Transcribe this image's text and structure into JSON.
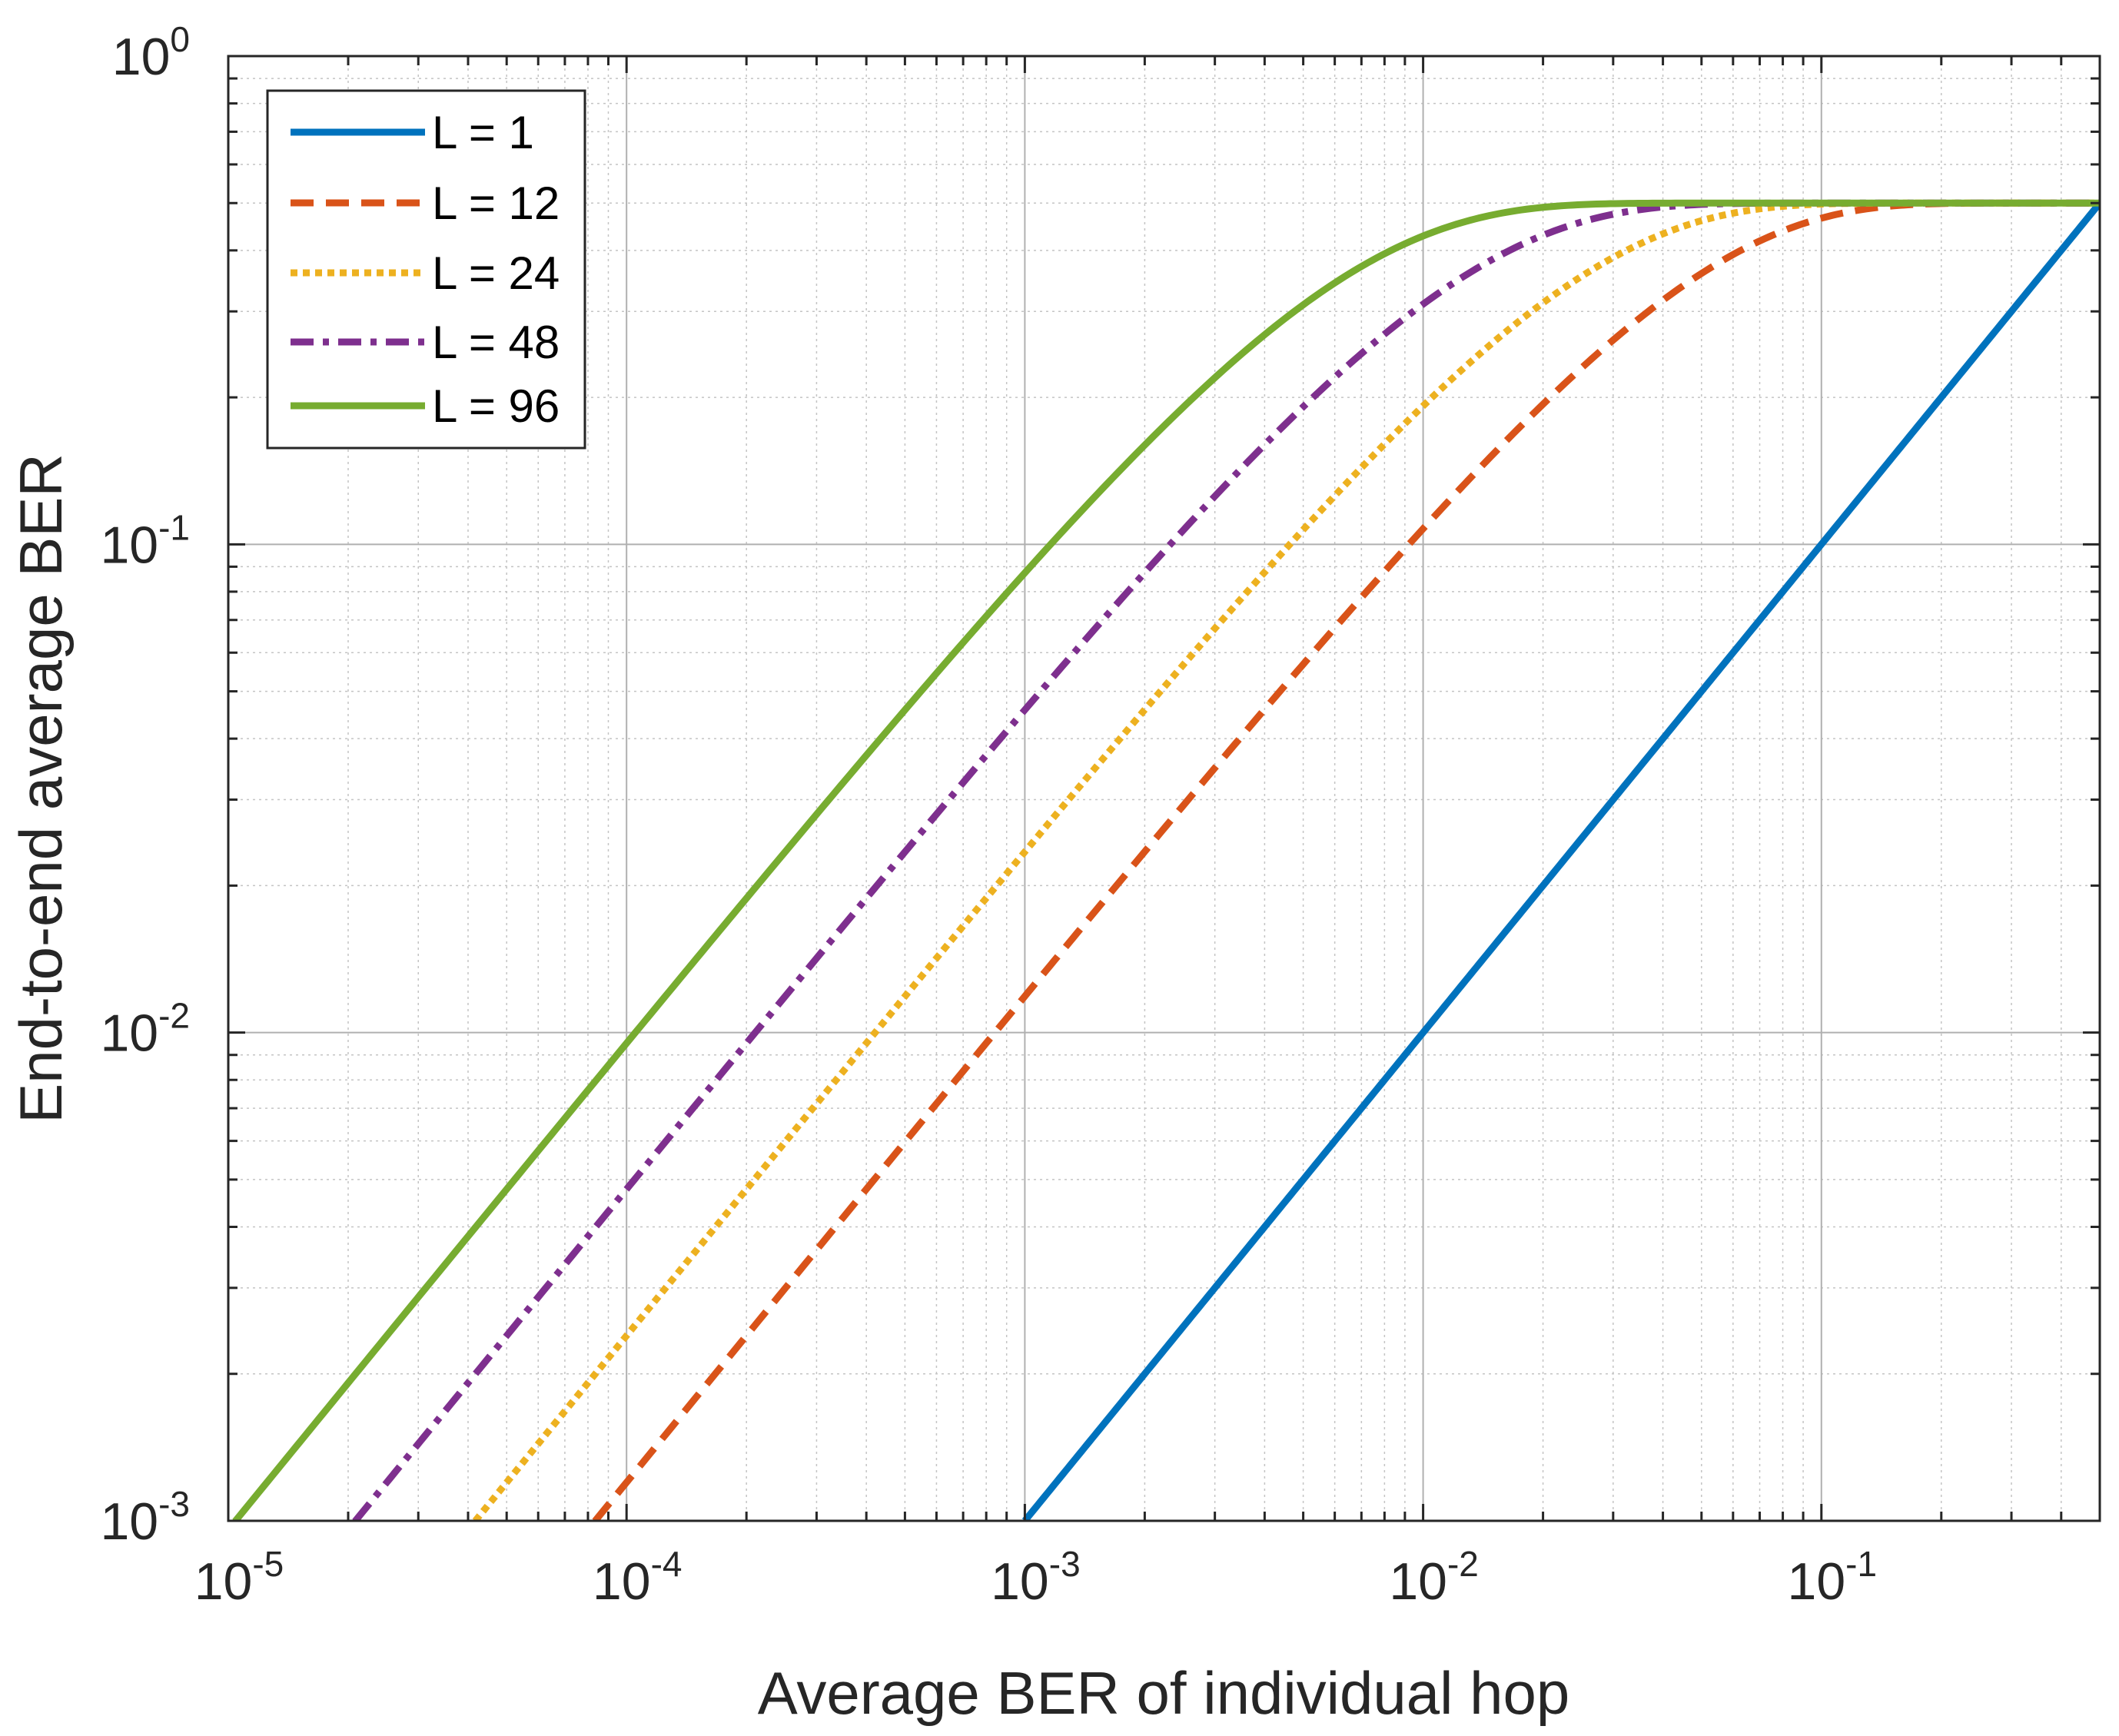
{
  "chart_data": {
    "type": "line",
    "title": "",
    "xlabel": "Average BER of individual hop",
    "ylabel": "End-to-end average BER",
    "xscale": "log",
    "yscale": "log",
    "xlim": [
      1e-05,
      0.5
    ],
    "ylim": [
      0.001,
      1
    ],
    "grid": true,
    "legend_position": "top-left",
    "x_ticks": [
      {
        "base": "10",
        "exp": "-5",
        "value": 1e-05
      },
      {
        "base": "10",
        "exp": "-4",
        "value": 0.0001
      },
      {
        "base": "10",
        "exp": "-3",
        "value": 0.001
      },
      {
        "base": "10",
        "exp": "-2",
        "value": 0.01
      },
      {
        "base": "10",
        "exp": "-1",
        "value": 0.1
      }
    ],
    "y_ticks": [
      {
        "base": "10",
        "exp": "-3",
        "value": 0.001
      },
      {
        "base": "10",
        "exp": "-2",
        "value": 0.01
      },
      {
        "base": "10",
        "exp": "-1",
        "value": 0.1
      },
      {
        "base": "10",
        "exp": "0",
        "value": 1
      }
    ],
    "series": [
      {
        "name": "L = 1",
        "hops": 1,
        "color": "#0072BD",
        "dash": "solid",
        "x": [
          0.001,
          0.002,
          0.005,
          0.01,
          0.02,
          0.05,
          0.1,
          0.2,
          0.5
        ],
        "y": [
          0.001,
          0.002,
          0.005,
          0.01,
          0.02,
          0.05,
          0.1,
          0.2,
          0.5
        ]
      },
      {
        "name": "L = 12",
        "hops": 12,
        "color": "#D95319",
        "dash": "dashed",
        "x": [
          8.33e-05,
          0.0002,
          0.0005,
          0.001,
          0.002,
          0.005,
          0.01,
          0.02,
          0.05,
          0.1,
          0.2,
          0.5
        ],
        "y": [
          0.001,
          0.0024,
          0.006,
          0.0119,
          0.0234,
          0.0565,
          0.1067,
          0.1904,
          0.3588,
          0.4565,
          0.4966,
          0.5
        ]
      },
      {
        "name": "L = 24",
        "hops": 24,
        "color": "#EDB120",
        "dash": "dotted",
        "x": [
          4.17e-05,
          0.0001,
          0.0002,
          0.0005,
          0.001,
          0.002,
          0.005,
          0.01,
          0.02,
          0.05,
          0.1,
          0.2,
          0.5
        ],
        "y": [
          0.001,
          0.0024,
          0.0048,
          0.0118,
          0.0234,
          0.0457,
          0.1066,
          0.1907,
          0.3091,
          0.4589,
          0.4976,
          0.5,
          0.5
        ]
      },
      {
        "name": "L = 48",
        "hops": 48,
        "color": "#7E2F8E",
        "dash": "dashdot",
        "x": [
          2.08e-05,
          5e-05,
          0.0001,
          0.0002,
          0.0005,
          0.001,
          0.002,
          0.005,
          0.01,
          0.02,
          0.05,
          0.1,
          0.5
        ],
        "y": [
          0.001,
          0.0024,
          0.0048,
          0.0095,
          0.0233,
          0.0457,
          0.0873,
          0.1907,
          0.3091,
          0.4311,
          0.4986,
          0.5,
          0.5
        ]
      },
      {
        "name": "L = 96",
        "hops": 96,
        "color": "#77AC30",
        "dash": "solid",
        "x": [
          1.04e-05,
          2e-05,
          5e-05,
          0.0001,
          0.0002,
          0.0005,
          0.001,
          0.002,
          0.005,
          0.01,
          0.02,
          0.05,
          0.5
        ],
        "y": [
          0.001,
          0.0019,
          0.0048,
          0.0095,
          0.0188,
          0.0455,
          0.0873,
          0.1605,
          0.3093,
          0.4262,
          0.4924,
          0.5,
          0.5
        ]
      }
    ]
  }
}
